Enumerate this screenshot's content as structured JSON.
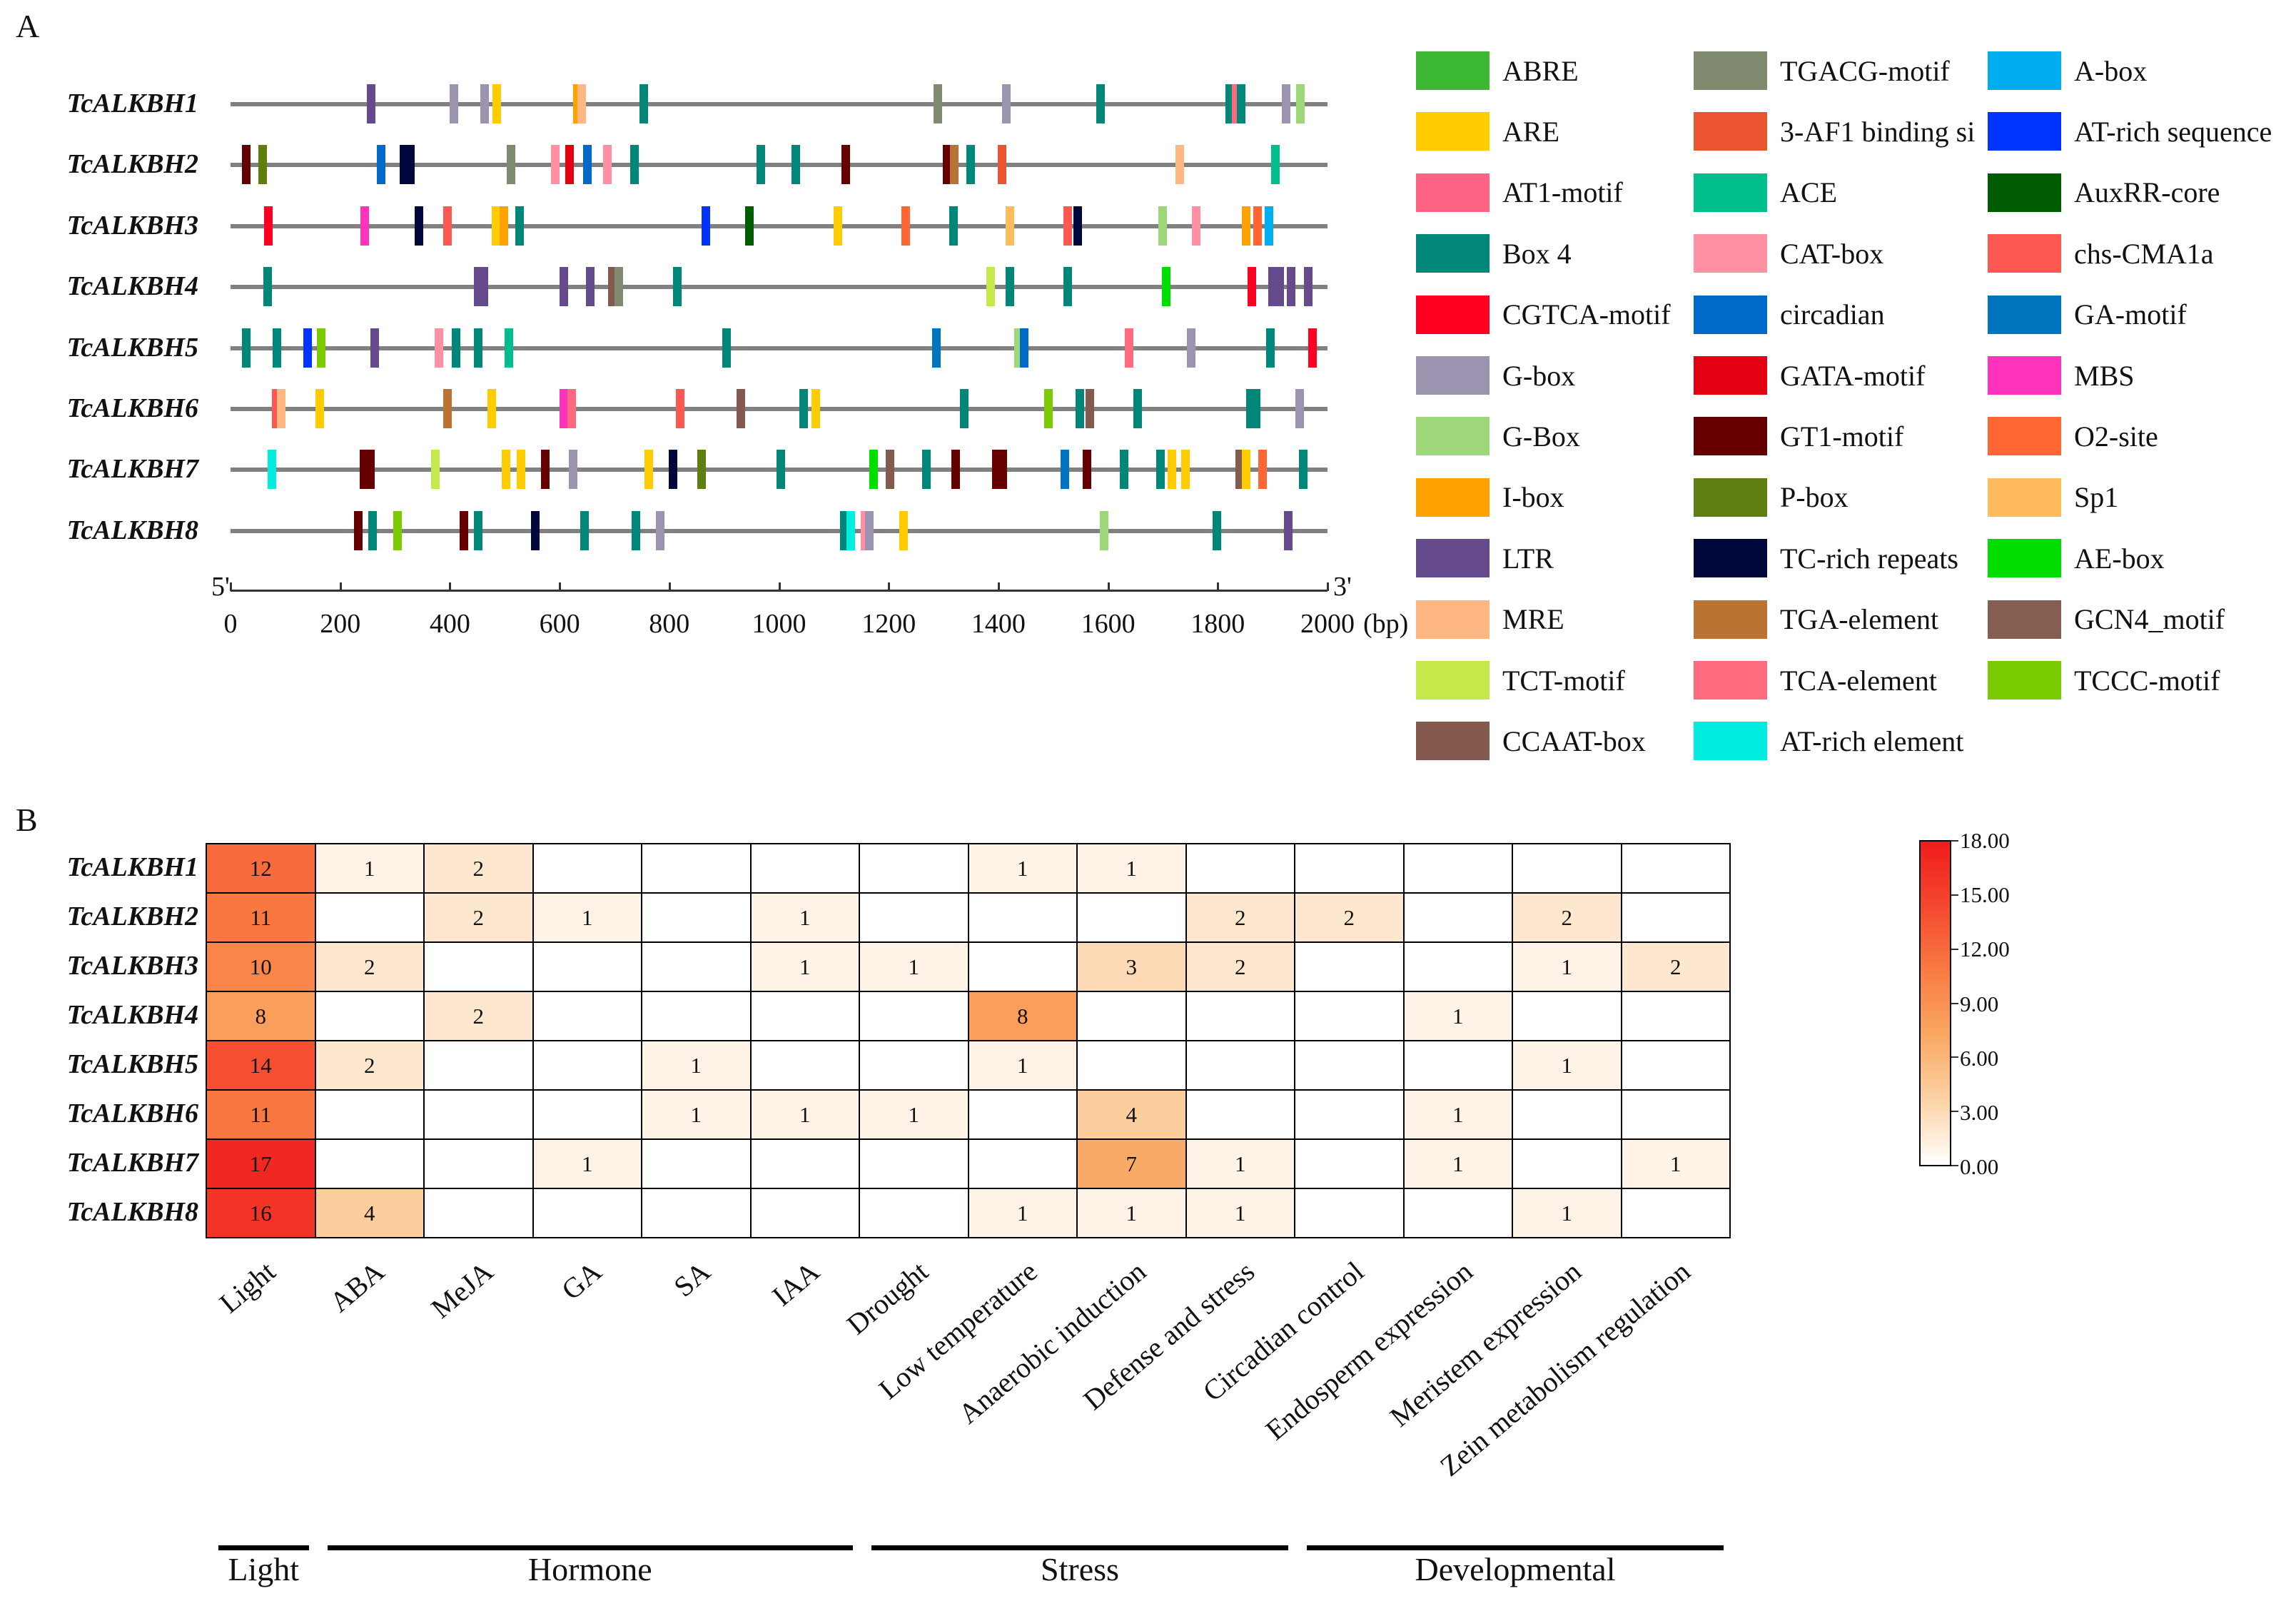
{
  "panels": {
    "a": "A",
    "b": "B"
  },
  "chart_data": [
    {
      "type": "gene-structure",
      "title": "A",
      "xlabel": "(bp)",
      "start_label": "5'",
      "end_label": "3'",
      "xlim": [
        0,
        2000
      ],
      "xticks": [
        0,
        200,
        400,
        600,
        800,
        1000,
        1200,
        1400,
        1600,
        1800,
        2000
      ],
      "legend": [
        {
          "name": "ABRE",
          "color": "#3CB832"
        },
        {
          "name": "ARE",
          "color": "#FFCC00"
        },
        {
          "name": "AT1-motif",
          "color": "#FF6384"
        },
        {
          "name": "Box 4",
          "color": "#00877A"
        },
        {
          "name": "CGTCA-motif",
          "color": "#FF0022"
        },
        {
          "name": "G-box",
          "color": "#9B93B0"
        },
        {
          "name": "G-Box",
          "color": "#9ED67A"
        },
        {
          "name": "I-box",
          "color": "#FFA200"
        },
        {
          "name": "LTR",
          "color": "#654A8E"
        },
        {
          "name": "MRE",
          "color": "#FFB784"
        },
        {
          "name": "TCT-motif",
          "color": "#C5E84B"
        },
        {
          "name": "CCAAT-box",
          "color": "#845A4E"
        },
        {
          "name": "TGACG-motif",
          "color": "#7F8A6E"
        },
        {
          "name": "3-AF1 binding si",
          "color": "#EA5430"
        },
        {
          "name": "ACE",
          "color": "#00BF8C"
        },
        {
          "name": "CAT-box",
          "color": "#FF8FA3"
        },
        {
          "name": "circadian",
          "color": "#006ACB"
        },
        {
          "name": "GATA-motif",
          "color": "#E30010"
        },
        {
          "name": "GT1-motif",
          "color": "#660000"
        },
        {
          "name": "P-box",
          "color": "#5E7F10"
        },
        {
          "name": "TC-rich repeats",
          "color": "#00083B"
        },
        {
          "name": "TGA-element",
          "color": "#BB7333"
        },
        {
          "name": "TCA-element",
          "color": "#FF6A7F"
        },
        {
          "name": "AT-rich element",
          "color": "#00EDE0"
        },
        {
          "name": "A-box",
          "color": "#00AEEF"
        },
        {
          "name": "AT-rich sequence",
          "color": "#0033FF"
        },
        {
          "name": "AuxRR-core",
          "color": "#005C00"
        },
        {
          "name": "chs-CMA1a",
          "color": "#FF5850"
        },
        {
          "name": "GA-motif",
          "color": "#0075BF"
        },
        {
          "name": "MBS",
          "color": "#FF33BB"
        },
        {
          "name": "O2-site",
          "color": "#FF6633"
        },
        {
          "name": "Sp1",
          "color": "#FFBB5C"
        },
        {
          "name": "AE-box",
          "color": "#00DD00"
        },
        {
          "name": "GCN4_motif",
          "color": "#845E50"
        },
        {
          "name": "TCCC-motif",
          "color": "#7ACC00"
        }
      ],
      "genes": [
        {
          "name": "TcALKBH1",
          "elements": [
            [
              256,
              "LTR"
            ],
            [
              407,
              "G-box"
            ],
            [
              463,
              "G-box"
            ],
            [
              486,
              "ARE"
            ],
            [
              632,
              "I-box"
            ],
            [
              640,
              "MRE"
            ],
            [
              754,
              "Box 4"
            ],
            [
              1289,
              "TGACG-motif"
            ],
            [
              1415,
              "G-box"
            ],
            [
              1586,
              "Box 4"
            ],
            [
              1822,
              "Box 4"
            ],
            [
              1834,
              "TCA-element"
            ],
            [
              1842,
              "Box 4"
            ],
            [
              1925,
              "G-box"
            ],
            [
              1950,
              "G-Box"
            ]
          ]
        },
        {
          "name": "TcALKBH2",
          "elements": [
            [
              29,
              "GT1-motif"
            ],
            [
              59,
              "P-box"
            ],
            [
              275,
              "circadian"
            ],
            [
              316,
              "TC-rich repeats"
            ],
            [
              328,
              "TC-rich repeats"
            ],
            [
              512,
              "TGACG-motif"
            ],
            [
              592,
              "CAT-box"
            ],
            [
              618,
              "GATA-motif"
            ],
            [
              651,
              "circadian"
            ],
            [
              687,
              "CAT-box"
            ],
            [
              736,
              "Box 4"
            ],
            [
              967,
              "Box 4"
            ],
            [
              1030,
              "Box 4"
            ],
            [
              1122,
              "GT1-motif"
            ],
            [
              1307,
              "GT1-motif"
            ],
            [
              1319,
              "TGA-element"
            ],
            [
              1349,
              "Box 4"
            ],
            [
              1407,
              "3-AF1 binding si"
            ],
            [
              1730,
              "MRE"
            ],
            [
              1905,
              "ACE"
            ]
          ]
        },
        {
          "name": "TcALKBH3",
          "elements": [
            [
              69,
              "CGTCA-motif"
            ],
            [
              245,
              "MBS"
            ],
            [
              344,
              "TC-rich repeats"
            ],
            [
              396,
              "chs-CMA1a"
            ],
            [
              484,
              "ARE"
            ],
            [
              499,
              "I-box"
            ],
            [
              527,
              "Box 4"
            ],
            [
              866,
              "AT-rich sequence"
            ],
            [
              946,
              "AuxRR-core"
            ],
            [
              1107,
              "ARE"
            ],
            [
              1231,
              "O2-site"
            ],
            [
              1318,
              "Box 4"
            ],
            [
              1421,
              "Sp1"
            ],
            [
              1527,
              "chs-CMA1a"
            ],
            [
              1545,
              "TC-rich repeats"
            ],
            [
              1700,
              "G-Box"
            ],
            [
              1761,
              "CAT-box"
            ],
            [
              1852,
              "I-box"
            ],
            [
              1873,
              "O2-site"
            ],
            [
              1893,
              "A-box"
            ]
          ]
        },
        {
          "name": "TcALKBH4",
          "elements": [
            [
              68,
              "Box 4"
            ],
            [
              452,
              "LTR"
            ],
            [
              462,
              "LTR"
            ],
            [
              608,
              "LTR"
            ],
            [
              656,
              "LTR"
            ],
            [
              696,
              "CCAAT-box"
            ],
            [
              708,
              "TGACG-motif"
            ],
            [
              815,
              "Box 4"
            ],
            [
              1386,
              "TCT-motif"
            ],
            [
              1421,
              "Box 4"
            ],
            [
              1526,
              "Box 4"
            ],
            [
              1706,
              "AE-box"
            ],
            [
              1862,
              "CGTCA-motif"
            ],
            [
              1900,
              "LTR"
            ],
            [
              1913,
              "LTR"
            ],
            [
              1933,
              "LTR"
            ],
            [
              1965,
              "LTR"
            ]
          ]
        },
        {
          "name": "TcALKBH5",
          "elements": [
            [
              29,
              "Box 4"
            ],
            [
              84,
              "Box 4"
            ],
            [
              140,
              "AT-rich sequence"
            ],
            [
              165,
              "TCCC-motif"
            ],
            [
              263,
              "LTR"
            ],
            [
              380,
              "CAT-box"
            ],
            [
              411,
              "Box 4"
            ],
            [
              451,
              "Box 4"
            ],
            [
              507,
              "ACE"
            ],
            [
              904,
              "Box 4"
            ],
            [
              1287,
              "GA-motif"
            ],
            [
              1437,
              "G-Box"
            ],
            [
              1447,
              "circadian"
            ],
            [
              1638,
              "TCA-element"
            ],
            [
              1752,
              "G-box"
            ],
            [
              1896,
              "Box 4"
            ],
            [
              1973,
              "CGTCA-motif"
            ]
          ]
        },
        {
          "name": "TcALKBH6",
          "elements": [
            [
              83,
              "chs-CMA1a"
            ],
            [
              93,
              "MRE"
            ],
            [
              163,
              "ARE"
            ],
            [
              395,
              "TGA-element"
            ],
            [
              476,
              "ARE"
            ],
            [
              608,
              "MBS"
            ],
            [
              622,
              "TCA-element"
            ],
            [
              820,
              "chs-CMA1a"
            ],
            [
              931,
              "CCAAT-box"
            ],
            [
              1045,
              "Box 4"
            ],
            [
              1067,
              "ARE"
            ],
            [
              1338,
              "Box 4"
            ],
            [
              1491,
              "TCCC-motif"
            ],
            [
              1549,
              "Box 4"
            ],
            [
              1567,
              "CCAAT-box"
            ],
            [
              1654,
              "Box 4"
            ],
            [
              1860,
              "Box 4"
            ],
            [
              1870,
              "Box 4"
            ],
            [
              1949,
              "G-box"
            ]
          ]
        },
        {
          "name": "TcALKBH7",
          "elements": [
            [
              75,
              "AT-rich element"
            ],
            [
              243,
              "GT1-motif"
            ],
            [
              255,
              "GT1-motif"
            ],
            [
              374,
              "TCT-motif"
            ],
            [
              502,
              "ARE"
            ],
            [
              530,
              "ARE"
            ],
            [
              574,
              "GT1-motif"
            ],
            [
              624,
              "G-box"
            ],
            [
              762,
              "ARE"
            ],
            [
              807,
              "TC-rich repeats"
            ],
            [
              859,
              "P-box"
            ],
            [
              1003,
              "Box 4"
            ],
            [
              1173,
              "AE-box"
            ],
            [
              1202,
              "CCAAT-box"
            ],
            [
              1269,
              "Box 4"
            ],
            [
              1322,
              "GT1-motif"
            ],
            [
              1396,
              "GT1-motif"
            ],
            [
              1408,
              "GT1-motif"
            ],
            [
              1521,
              "GA-motif"
            ],
            [
              1562,
              "GT1-motif"
            ],
            [
              1629,
              "Box 4"
            ],
            [
              1696,
              "Box 4"
            ],
            [
              1716,
              "ARE"
            ],
            [
              1741,
              "ARE"
            ],
            [
              1840,
              "CCAAT-box"
            ],
            [
              1852,
              "ARE"
            ],
            [
              1881,
              "O2-site"
            ],
            [
              1956,
              "Box 4"
            ]
          ]
        },
        {
          "name": "TcALKBH8",
          "elements": [
            [
              233,
              "GT1-motif"
            ],
            [
              259,
              "Box 4"
            ],
            [
              304,
              "TCCC-motif"
            ],
            [
              426,
              "GT1-motif"
            ],
            [
              452,
              "Box 4"
            ],
            [
              556,
              "TC-rich repeats"
            ],
            [
              646,
              "Box 4"
            ],
            [
              739,
              "Box 4"
            ],
            [
              783,
              "G-box"
            ],
            [
              1119,
              "Box 4"
            ],
            [
              1131,
              "AT-rich element"
            ],
            [
              1157,
              "CAT-box"
            ],
            [
              1165,
              "G-box"
            ],
            [
              1227,
              "ARE"
            ],
            [
              1593,
              "G-Box"
            ],
            [
              1798,
              "Box 4"
            ],
            [
              1929,
              "LTR"
            ]
          ]
        }
      ]
    },
    {
      "type": "heatmap",
      "title": "B",
      "rows": [
        "TcALKBH1",
        "TcALKBH2",
        "TcALKBH3",
        "TcALKBH4",
        "TcALKBH5",
        "TcALKBH6",
        "TcALKBH7",
        "TcALKBH8"
      ],
      "columns": [
        "Light",
        "ABA",
        "MeJA",
        "GA",
        "SA",
        "IAA",
        "Drought",
        "Low temperature",
        "Anaerobic induction",
        "Defense and stress",
        "Circadian control",
        "Endosperm expression",
        "Meristem expression",
        "Zein metabolism regulation"
      ],
      "values": [
        [
          12,
          1,
          2,
          null,
          null,
          null,
          null,
          1,
          1,
          null,
          null,
          null,
          null,
          null
        ],
        [
          11,
          null,
          2,
          1,
          null,
          1,
          null,
          null,
          null,
          2,
          2,
          null,
          2,
          null
        ],
        [
          10,
          2,
          null,
          null,
          null,
          1,
          1,
          null,
          3,
          2,
          null,
          null,
          1,
          2
        ],
        [
          8,
          null,
          2,
          null,
          null,
          null,
          null,
          8,
          null,
          null,
          null,
          1,
          null,
          null
        ],
        [
          14,
          2,
          null,
          null,
          1,
          null,
          null,
          1,
          null,
          null,
          null,
          null,
          1,
          null
        ],
        [
          11,
          null,
          null,
          null,
          1,
          1,
          1,
          null,
          4,
          null,
          null,
          1,
          null,
          null
        ],
        [
          17,
          null,
          null,
          1,
          null,
          null,
          null,
          null,
          7,
          1,
          null,
          1,
          null,
          1
        ],
        [
          16,
          4,
          null,
          null,
          null,
          null,
          null,
          1,
          1,
          1,
          null,
          null,
          1,
          null
        ]
      ],
      "colorbar": {
        "range": [
          0,
          18
        ],
        "ticks": [
          "18.00",
          "15.00",
          "12.00",
          "9.00",
          "6.00",
          "3.00",
          "0.00"
        ],
        "colors": [
          "#ffffff",
          "#fcd3a6",
          "#f9a862",
          "#f97b42",
          "#f4482f",
          "#f01c1c"
        ]
      },
      "groups": [
        {
          "name": "Light",
          "from": 0,
          "to": 0
        },
        {
          "name": "Hormone",
          "from": 1,
          "to": 5
        },
        {
          "name": "Stress",
          "from": 6,
          "to": 9
        },
        {
          "name": "Developmental",
          "from": 10,
          "to": 13
        }
      ]
    }
  ]
}
